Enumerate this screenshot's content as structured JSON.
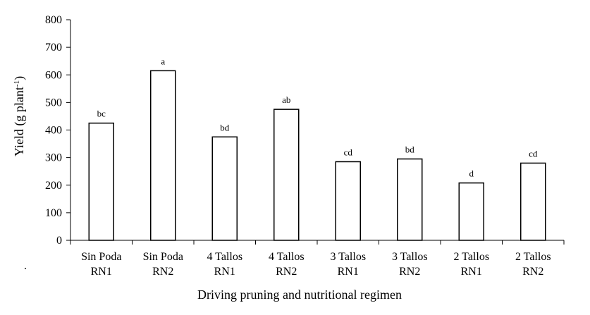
{
  "chart_data": {
    "type": "bar",
    "categories": [
      [
        "Sin Poda",
        "RN1"
      ],
      [
        "Sin Poda",
        "RN2"
      ],
      [
        "4 Tallos",
        "RN1"
      ],
      [
        "4 Tallos",
        "RN2"
      ],
      [
        "3 Tallos",
        "RN1"
      ],
      [
        "3 Tallos",
        "RN2"
      ],
      [
        "2 Tallos",
        "RN1"
      ],
      [
        "2 Tallos",
        "RN2"
      ]
    ],
    "values": [
      425,
      615,
      375,
      475,
      285,
      295,
      208,
      280
    ],
    "letters": [
      "bc",
      "a",
      "bd",
      "ab",
      "cd",
      "bd",
      "d",
      "cd"
    ],
    "title": "",
    "xlabel": "Driving pruning and nutritional regimen",
    "ylabel": {
      "base": "Yield (g plant",
      "sup": "-1",
      "close": ")"
    },
    "ylim": [
      0,
      800
    ],
    "yticks": [
      0,
      100,
      200,
      300,
      400,
      500,
      600,
      700,
      800
    ],
    "grid": false,
    "legend": "none",
    "bar_fill": "#ffffff",
    "bar_stroke": "#000000",
    "stray_mark": "."
  }
}
